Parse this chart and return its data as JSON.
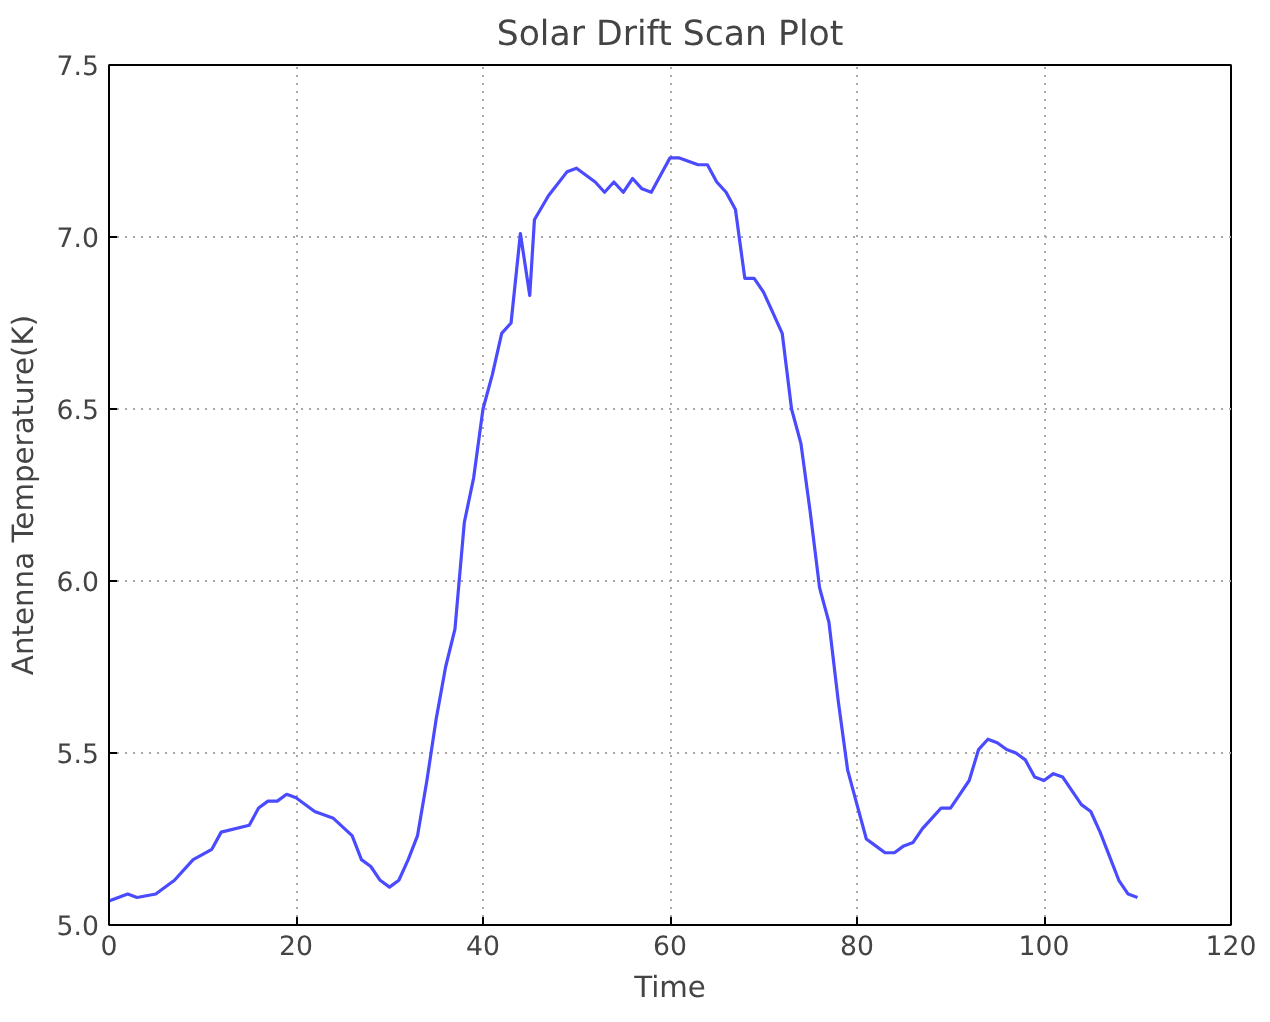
{
  "chart_data": {
    "type": "line",
    "title": "Solar Drift Scan Plot",
    "xlabel": "Time",
    "ylabel": "Antenna Temperature(K)",
    "xlim": [
      0,
      120
    ],
    "xticks": [
      0,
      20,
      40,
      60,
      80,
      100,
      120
    ],
    "ylim": [
      5.0,
      7.5
    ],
    "yticks": [
      {
        "value": 5.0,
        "label": "5.0"
      },
      {
        "value": 5.5,
        "label": "5.5"
      },
      {
        "value": 6.0,
        "label": "6.0"
      },
      {
        "value": 6.5,
        "label": "6.5"
      },
      {
        "value": 7.0,
        "label": "7.0"
      },
      {
        "value": 7.5,
        "label": "7.5"
      }
    ],
    "grid": true,
    "line_style": "solid",
    "series": [
      {
        "color": "#4a4aff",
        "x": [
          0,
          2,
          3,
          5,
          7,
          9,
          11,
          12,
          15,
          16,
          17,
          18,
          19,
          20,
          22,
          24,
          26,
          27,
          28,
          29,
          30,
          31,
          32,
          33,
          34,
          35,
          36,
          37,
          38,
          39,
          40,
          41,
          42,
          43,
          44,
          45,
          45.5,
          47,
          49,
          50,
          52,
          53,
          54,
          55,
          56,
          57,
          58,
          59,
          60,
          61,
          63,
          64,
          65,
          66,
          67,
          68,
          69,
          70,
          71,
          72,
          73,
          74,
          75,
          76,
          77,
          78,
          79,
          80,
          81,
          82,
          83,
          84,
          85,
          86,
          87,
          88,
          89,
          90,
          91,
          92,
          93,
          94,
          95,
          96,
          97,
          98,
          99,
          100,
          101,
          102,
          103,
          104,
          105,
          106,
          107,
          108,
          109,
          110
        ],
        "values": [
          5.07,
          5.09,
          5.08,
          5.09,
          5.13,
          5.19,
          5.22,
          5.27,
          5.29,
          5.34,
          5.36,
          5.36,
          5.38,
          5.37,
          5.33,
          5.31,
          5.26,
          5.19,
          5.17,
          5.13,
          5.11,
          5.13,
          5.19,
          5.26,
          5.42,
          5.6,
          5.75,
          5.86,
          6.17,
          6.3,
          6.5,
          6.6,
          6.72,
          6.75,
          7.01,
          6.83,
          7.05,
          7.12,
          7.19,
          7.2,
          7.16,
          7.13,
          7.16,
          7.13,
          7.17,
          7.14,
          7.13,
          7.18,
          7.23,
          7.23,
          7.21,
          7.21,
          7.16,
          7.13,
          7.08,
          6.88,
          6.88,
          6.84,
          6.78,
          6.72,
          6.5,
          6.4,
          6.2,
          5.98,
          5.88,
          5.65,
          5.45,
          5.35,
          5.25,
          5.23,
          5.21,
          5.21,
          5.23,
          5.24,
          5.28,
          5.31,
          5.34,
          5.34,
          5.38,
          5.42,
          5.51,
          5.54,
          5.53,
          5.51,
          5.5,
          5.48,
          5.43,
          5.42,
          5.44,
          5.43,
          5.39,
          5.35,
          5.33,
          5.27,
          5.2,
          5.13,
          5.09,
          5.08
        ]
      }
    ]
  }
}
